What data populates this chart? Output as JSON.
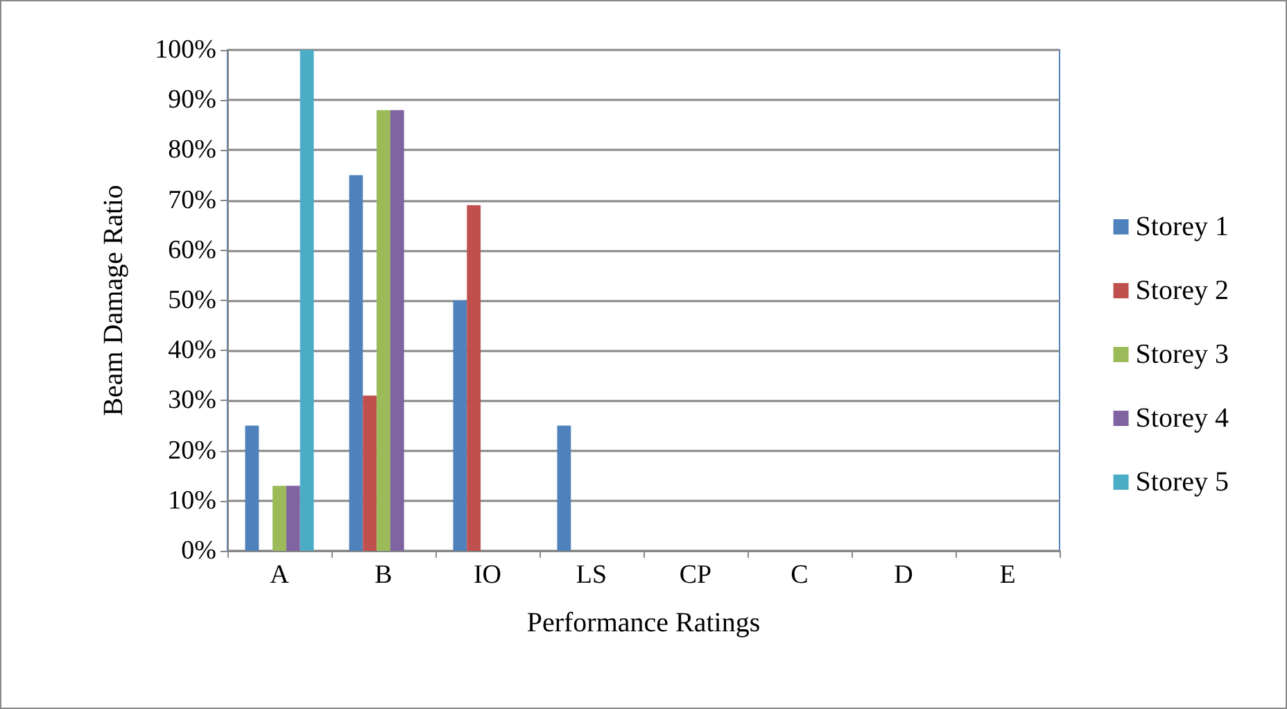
{
  "chart_data": {
    "type": "bar",
    "xlabel": "Performance Ratings",
    "ylabel": "Beam Damage Ratio",
    "categories": [
      "A",
      "B",
      "IO",
      "LS",
      "CP",
      "C",
      "D",
      "E"
    ],
    "series": [
      {
        "name": "Storey 1",
        "color": "#4f81bd",
        "values": [
          25,
          75,
          50,
          25,
          0,
          0,
          0,
          0
        ]
      },
      {
        "name": "Storey 2",
        "color": "#c0504d",
        "values": [
          0,
          31,
          69,
          0,
          0,
          0,
          0,
          0
        ]
      },
      {
        "name": "Storey 3",
        "color": "#9bbb59",
        "values": [
          13,
          88,
          0,
          0,
          0,
          0,
          0,
          0
        ]
      },
      {
        "name": "Storey 4",
        "color": "#8064a2",
        "values": [
          13,
          88,
          0,
          0,
          0,
          0,
          0,
          0
        ]
      },
      {
        "name": "Storey 5",
        "color": "#4bacc6",
        "values": [
          100,
          0,
          0,
          0,
          0,
          0,
          0,
          0
        ]
      }
    ],
    "ylim": [
      0,
      100
    ],
    "yticks": [
      {
        "value": 0,
        "label": "0%"
      },
      {
        "value": 10,
        "label": "10%"
      },
      {
        "value": 20,
        "label": "20%"
      },
      {
        "value": 30,
        "label": "30%"
      },
      {
        "value": 40,
        "label": "40%"
      },
      {
        "value": 50,
        "label": "50%"
      },
      {
        "value": 60,
        "label": "60%"
      },
      {
        "value": 70,
        "label": "70%"
      },
      {
        "value": 80,
        "label": "80%"
      },
      {
        "value": 90,
        "label": "90%"
      },
      {
        "value": 100,
        "label": "100%"
      }
    ],
    "grid": "y",
    "legend": "right"
  }
}
